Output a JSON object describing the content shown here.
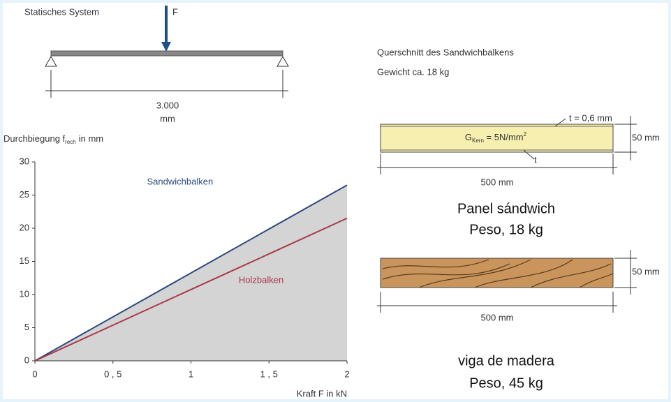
{
  "system": {
    "title": "Statisches System",
    "force": "F",
    "span": "3.000",
    "span_unit": "mm"
  },
  "section": {
    "title": "Querschnitt des Sandwichbalkens",
    "weight": "Gewicht ca. 18 kg",
    "sandwich": {
      "face": "t = 0,6 mm",
      "core": [
        "G",
        "Kern",
        " = 5N/mm",
        "2"
      ],
      "bottom": "t",
      "height": "50 mm",
      "width": "500 mm",
      "caption": "Panel sándwich",
      "weight": "Peso, 18 kg"
    },
    "wood": {
      "height": "50 mm",
      "width": "500 mm",
      "caption": "viga de madera",
      "weight": "Peso, 45 kg"
    }
  },
  "chart_data": {
    "type": "line",
    "y_label": [
      "Durchbiegung f",
      "rech",
      "in mm"
    ],
    "x_label": "Kraft F in kN",
    "x": [
      0,
      2
    ],
    "series": [
      {
        "name": "Sandwichbalken",
        "color": "#2b4a80",
        "values": [
          0,
          26.5
        ]
      },
      {
        "name": "Holzbalken",
        "color": "#a8384a",
        "values": [
          0,
          21.5
        ]
      }
    ],
    "area_color": "#d4d4d4",
    "xlim": [
      0,
      2
    ],
    "xticks": [
      0,
      {
        "value": 0.5,
        "label": "0 , 5"
      },
      1,
      {
        "value": 1.5,
        "label": "1 , 5"
      },
      2
    ],
    "ylim": [
      0,
      30
    ],
    "yticks": [
      0,
      5,
      10,
      15,
      20,
      25,
      30
    ]
  }
}
